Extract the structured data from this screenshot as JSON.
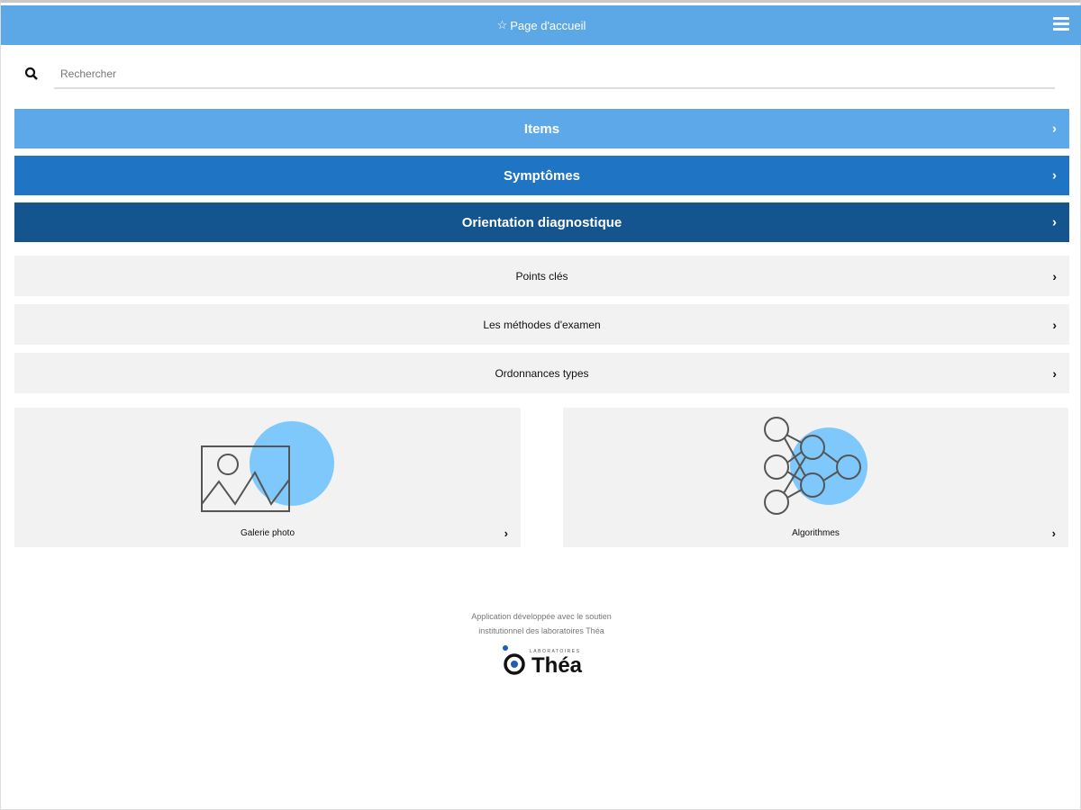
{
  "header": {
    "title": "Page d'accueil",
    "icon": "star-outline-icon",
    "menu_icon": "hamburger-icon"
  },
  "search": {
    "placeholder": "Rechercher",
    "value": ""
  },
  "nav_bars": [
    {
      "label": "Items",
      "color": "#5ca8e8"
    },
    {
      "label": "Symptômes",
      "color": "#1f74c4"
    },
    {
      "label": "Orientation diagnostique",
      "color": "#14548f"
    }
  ],
  "rows": [
    {
      "label": "Points clés"
    },
    {
      "label": "Les méthodes d'examen"
    },
    {
      "label": "Ordonnances types"
    }
  ],
  "cards": [
    {
      "label": "Galerie photo",
      "icon": "image-gallery-icon"
    },
    {
      "label": "Algorithmes",
      "icon": "network-icon"
    }
  ],
  "footer": {
    "line1": "Application développée avec le soutien",
    "line2": "institutionnel des laboratoires Théa",
    "logo_small": "LABORATOIRES",
    "logo_name": "Théa"
  },
  "colors": {
    "accent": "#5ca7e6",
    "circle": "#7fc8fb"
  }
}
